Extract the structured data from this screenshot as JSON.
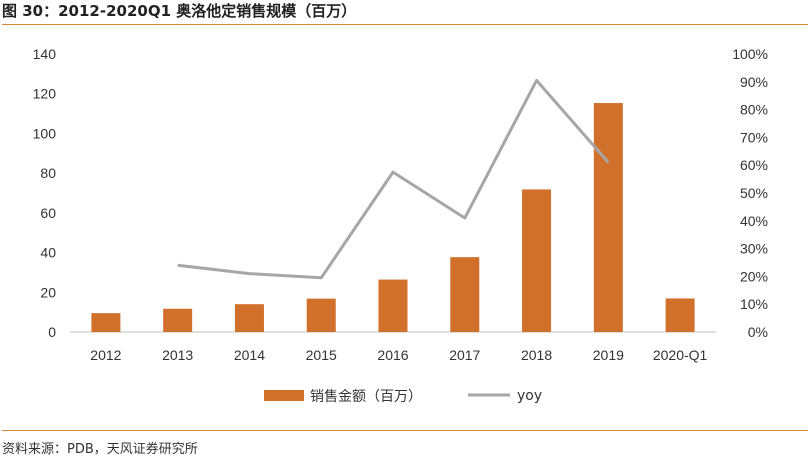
{
  "title": "图 30：2012-2020Q1 奥洛他定销售规模（百万）",
  "source": "资料来源：PDB，天风证券研究所",
  "colors": {
    "bar": "#d1702b",
    "line": "#a6a6a6",
    "accent": "#d6883a"
  },
  "chart_data": {
    "type": "bar",
    "categories": [
      "2012",
      "2013",
      "2014",
      "2015",
      "2016",
      "2017",
      "2018",
      "2019",
      "2020-Q1"
    ],
    "series": [
      {
        "name": "销售金额（百万）",
        "type": "bar",
        "axis": "left",
        "values": [
          9.5,
          11.7,
          14,
          16.8,
          26.4,
          37.7,
          71.8,
          115.3,
          16.9
        ]
      },
      {
        "name": "yoy",
        "type": "line",
        "axis": "right",
        "values": [
          null,
          0.24,
          0.21,
          0.195,
          0.575,
          0.41,
          0.905,
          0.61,
          null
        ]
      }
    ],
    "y_left": {
      "min": 0,
      "max": 140,
      "ticks": [
        0,
        20,
        40,
        60,
        80,
        100,
        120,
        140
      ]
    },
    "y_right": {
      "min": 0,
      "max": 1.0,
      "ticks": [
        0,
        0.1,
        0.2,
        0.3,
        0.4,
        0.5,
        0.6,
        0.7,
        0.8,
        0.9,
        1.0
      ],
      "tick_labels": [
        "0%",
        "10%",
        "20%",
        "30%",
        "40%",
        "50%",
        "60%",
        "70%",
        "80%",
        "90%",
        "100%"
      ]
    },
    "legend_position": "bottom",
    "grid": false
  }
}
